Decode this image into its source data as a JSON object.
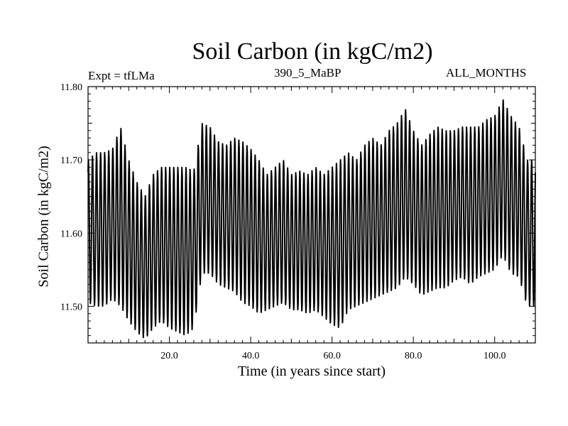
{
  "chart_data": {
    "type": "line",
    "title": "Soil Carbon (in kgC/m2)",
    "subtitle": "390_5_MaBP",
    "annotation_left": "Expt = tfLMa",
    "annotation_right": "ALL_MONTHS",
    "xlabel": "Time (in years since start)",
    "ylabel": "Soil Carbon (in kgC/m2)",
    "xlim": [
      0,
      110
    ],
    "ylim": [
      11.45,
      11.8
    ],
    "xticks": [
      20.0,
      40.0,
      60.0,
      80.0,
      100.0
    ],
    "xtick_labels": [
      "20.0",
      "40.0",
      "60.0",
      "80.0",
      "100.0"
    ],
    "yticks": [
      11.5,
      11.6,
      11.7,
      11.8
    ],
    "ytick_labels": [
      "11.50",
      "11.60",
      "11.70",
      "11.80"
    ],
    "series": [
      {
        "name": "Soil Carbon",
        "frequency": "monthly",
        "annual_cycle_envelope": {
          "year": [
            0,
            2,
            4,
            6,
            8,
            10,
            12,
            14,
            16,
            18,
            20,
            22,
            24,
            26,
            28,
            30,
            32,
            34,
            36,
            38,
            40,
            42,
            44,
            46,
            48,
            50,
            52,
            54,
            56,
            58,
            60,
            62,
            64,
            66,
            68,
            70,
            72,
            74,
            76,
            78,
            80,
            82,
            84,
            86,
            88,
            90,
            92,
            94,
            96,
            98,
            100,
            102,
            104,
            106,
            108,
            110
          ],
          "annual_max": [
            11.7,
            11.71,
            11.71,
            11.715,
            11.745,
            11.7,
            11.67,
            11.65,
            11.68,
            11.69,
            11.69,
            11.69,
            11.69,
            11.685,
            11.75,
            11.745,
            11.725,
            11.72,
            11.73,
            11.725,
            11.715,
            11.7,
            11.68,
            11.69,
            11.7,
            11.68,
            11.685,
            11.68,
            11.69,
            11.68,
            11.69,
            11.7,
            11.71,
            11.7,
            11.72,
            11.73,
            11.72,
            11.74,
            11.75,
            11.77,
            11.74,
            11.72,
            11.735,
            11.745,
            11.74,
            11.74,
            11.745,
            11.745,
            11.745,
            11.755,
            11.76,
            11.783,
            11.76,
            11.745,
            11.7,
            11.7
          ],
          "annual_min": [
            11.505,
            11.5,
            11.5,
            11.51,
            11.5,
            11.48,
            11.465,
            11.455,
            11.47,
            11.48,
            11.47,
            11.465,
            11.46,
            11.47,
            11.545,
            11.545,
            11.53,
            11.525,
            11.52,
            11.505,
            11.5,
            11.49,
            11.495,
            11.5,
            11.505,
            11.495,
            11.495,
            11.49,
            11.495,
            11.485,
            11.475,
            11.47,
            11.495,
            11.5,
            11.505,
            11.51,
            11.515,
            11.52,
            11.525,
            11.54,
            11.53,
            11.515,
            11.52,
            11.525,
            11.525,
            11.535,
            11.54,
            11.53,
            11.54,
            11.545,
            11.55,
            11.57,
            11.545,
            11.54,
            11.5,
            11.5
          ]
        }
      }
    ]
  }
}
